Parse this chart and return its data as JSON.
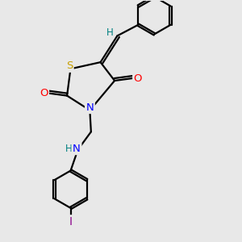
{
  "background_color": "#e8e8e8",
  "atom_colors": {
    "S": "#c8a000",
    "N": "#0000ff",
    "O": "#ff0000",
    "I": "#8b008b",
    "H": "#008080",
    "C": "#000000"
  },
  "bond_color": "#000000",
  "bond_width": 1.6,
  "fig_size": [
    3.0,
    3.0
  ],
  "dpi": 100
}
